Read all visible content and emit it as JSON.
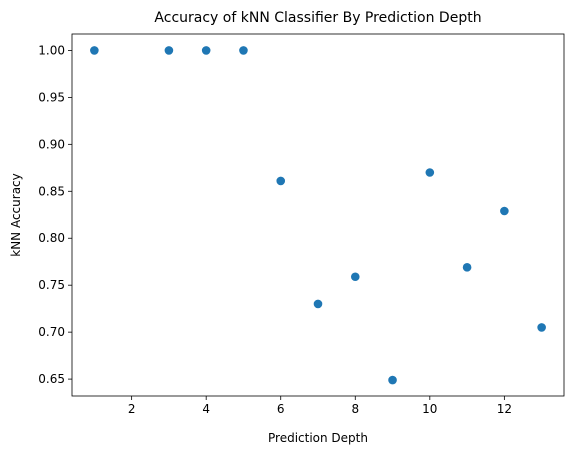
{
  "chart_data": {
    "type": "scatter",
    "title": "Accuracy of kNN Classifier By Prediction Depth",
    "xlabel": "Prediction Depth",
    "ylabel": "kNN Accuracy",
    "xlim": [
      0.4,
      13.6
    ],
    "ylim": [
      0.632,
      1.0175
    ],
    "xticks": [
      2,
      4,
      6,
      8,
      10,
      12
    ],
    "yticks": [
      0.65,
      0.7,
      0.75,
      0.8,
      0.85,
      0.9,
      0.95,
      1.0
    ],
    "ytick_labels": [
      "0.65",
      "0.70",
      "0.75",
      "0.80",
      "0.85",
      "0.90",
      "0.95",
      "1.00"
    ],
    "grid": false,
    "marker_color": "#1f77b4",
    "points": [
      {
        "x": 1,
        "y": 1.0
      },
      {
        "x": 3,
        "y": 1.0
      },
      {
        "x": 4,
        "y": 1.0
      },
      {
        "x": 5,
        "y": 1.0
      },
      {
        "x": 6,
        "y": 0.861
      },
      {
        "x": 7,
        "y": 0.73
      },
      {
        "x": 8,
        "y": 0.759
      },
      {
        "x": 9,
        "y": 0.649
      },
      {
        "x": 10,
        "y": 0.87
      },
      {
        "x": 11,
        "y": 0.769
      },
      {
        "x": 12,
        "y": 0.829
      },
      {
        "x": 13,
        "y": 0.705
      }
    ]
  }
}
